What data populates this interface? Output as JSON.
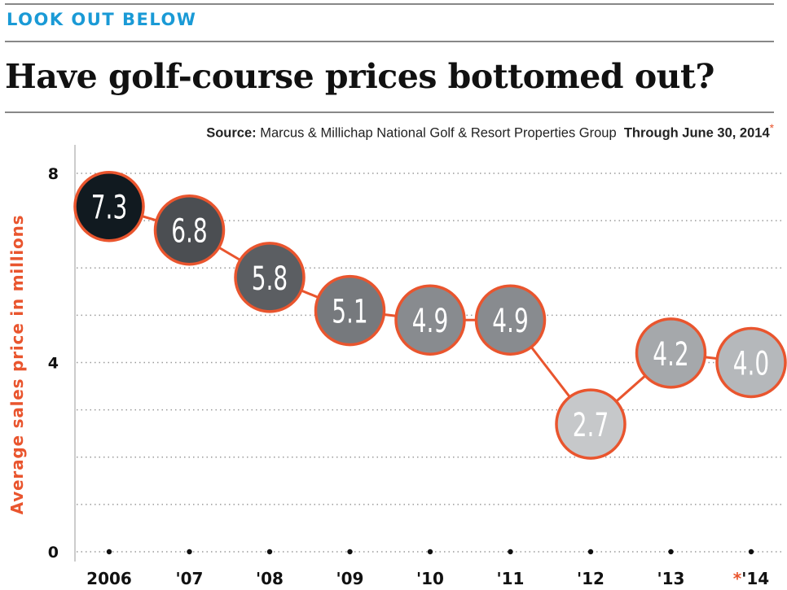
{
  "header": {
    "kicker": "LOOK OUT BELOW",
    "title": "Have golf-course prices bottomed out?",
    "source_label": "Source:",
    "source_text": " Marcus & Millichap National Golf & Resort Properties Group",
    "through": "Through June 30, 2014",
    "asterisk": "*"
  },
  "colors": {
    "accent": "#e9552e",
    "kicker": "#1a9ad6"
  },
  "chart_data": {
    "type": "line",
    "title": "Have golf-course prices bottomed out?",
    "ylabel": "Average sales price in millions",
    "xlabel": "",
    "ylim": [
      0,
      8
    ],
    "yticks": [
      "0",
      "4",
      "8"
    ],
    "grid": "dotted horizontal",
    "categories": [
      "2006",
      "'07",
      "'08",
      "'09",
      "'10",
      "'11",
      "'12",
      "'13",
      "'14"
    ],
    "category_prefix": [
      "",
      "",
      "",
      "",
      "",
      "",
      "",
      "",
      "*"
    ],
    "values": [
      7.3,
      6.8,
      5.8,
      5.1,
      4.9,
      4.9,
      2.7,
      4.2,
      4.0
    ],
    "labels": [
      "7.3",
      "6.8",
      "5.8",
      "5.1",
      "4.9",
      "4.9",
      "2.7",
      "4.2",
      "4.0"
    ],
    "fill_colors": [
      "#111a20",
      "#4b4e52",
      "#5b5e62",
      "#76797d",
      "#888b8f",
      "#888b8f",
      "#c6c8ca",
      "#a5a8ab",
      "#b5b8bb"
    ]
  }
}
